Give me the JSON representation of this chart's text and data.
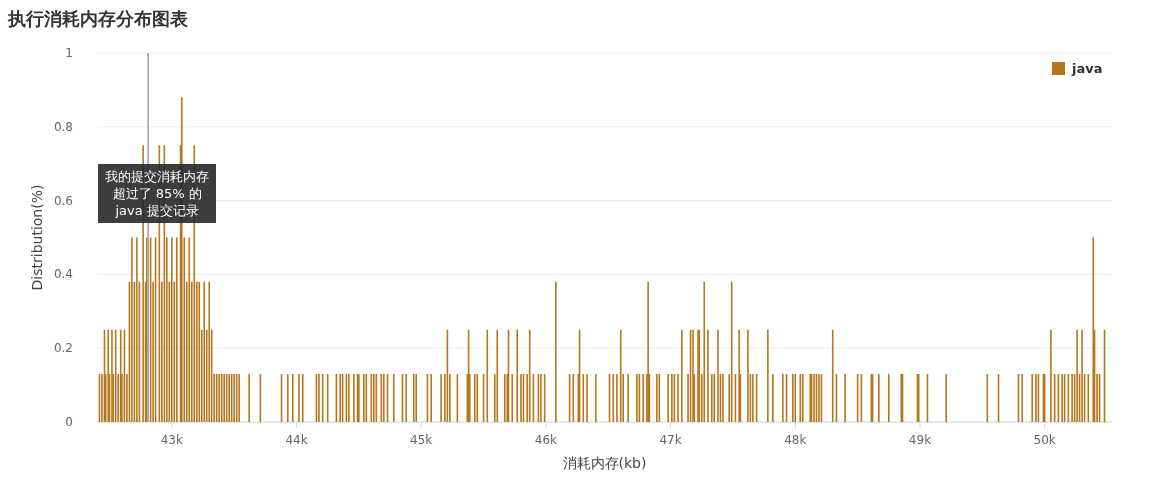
{
  "chart_data": {
    "type": "bar",
    "title": "执行消耗内存分布图表",
    "xlabel": "消耗内存(kb)",
    "ylabel": "Distribution(%)",
    "xlim": [
      42400,
      50540
    ],
    "ylim": [
      0,
      1
    ],
    "xticks": [
      {
        "value": 43000,
        "label": "43k"
      },
      {
        "value": 44000,
        "label": "44k"
      },
      {
        "value": 45000,
        "label": "45k"
      },
      {
        "value": 46000,
        "label": "46k"
      },
      {
        "value": 47000,
        "label": "47k"
      },
      {
        "value": 48000,
        "label": "48k"
      },
      {
        "value": 49000,
        "label": "49k"
      },
      {
        "value": 50000,
        "label": "50k"
      }
    ],
    "yticks": [
      0,
      0.2,
      0.4,
      0.6,
      0.8,
      1
    ],
    "grid": "y",
    "legend": "top right",
    "ref_lines": [
      {
        "axis": "x",
        "value": 42810,
        "label": "我的提交消耗内存超过了 85% 的 java 提交记录",
        "color": "#a0a0a0"
      }
    ],
    "x": [
      42420,
      42440,
      42460,
      42470,
      42490,
      42500,
      42520,
      42530,
      42550,
      42570,
      42590,
      42600,
      42620,
      42640,
      42660,
      42680,
      42700,
      42720,
      42740,
      42770,
      42790,
      42800,
      42830,
      42850,
      42870,
      42900,
      42920,
      42940,
      42960,
      42980,
      43000,
      43020,
      43040,
      43070,
      43080,
      43100,
      43120,
      43140,
      43160,
      43180,
      43200,
      43220,
      43240,
      43260,
      43280,
      43300,
      43320,
      43340,
      43360,
      43380,
      43400,
      43420,
      43440,
      43460,
      43480,
      43500,
      43520,
      43540,
      43620,
      43710,
      43880,
      43930,
      43970,
      44020,
      44050,
      44160,
      44180,
      44210,
      44250,
      44320,
      44350,
      44370,
      44400,
      44420,
      44460,
      44490,
      44500,
      44540,
      44560,
      44600,
      44620,
      44640,
      44680,
      44700,
      44730,
      44780,
      44850,
      44880,
      44940,
      44960,
      45050,
      45080,
      45160,
      45190,
      45210,
      45230,
      45290,
      45370,
      45380,
      45390,
      45430,
      45450,
      45500,
      45530,
      45590,
      45610,
      45670,
      45690,
      45700,
      45730,
      45770,
      45800,
      45820,
      45850,
      45870,
      45900,
      45940,
      45960,
      45990,
      46080,
      46190,
      46220,
      46260,
      46270,
      46300,
      46330,
      46400,
      46510,
      46540,
      46570,
      46600,
      46620,
      46660,
      46730,
      46750,
      46780,
      46810,
      46820,
      46830,
      46890,
      46910,
      46980,
      47010,
      47030,
      47060,
      47090,
      47140,
      47160,
      47180,
      47190,
      47220,
      47230,
      47250,
      47270,
      47300,
      47330,
      47350,
      47380,
      47400,
      47420,
      47470,
      47490,
      47520,
      47550,
      47560,
      47620,
      47640,
      47660,
      47690,
      47780,
      47820,
      47900,
      47930,
      47980,
      48000,
      48040,
      48060,
      48120,
      48130,
      48150,
      48170,
      48190,
      48210,
      48300,
      48330,
      48400,
      48500,
      48530,
      48610,
      48620,
      48670,
      48750,
      48850,
      48860,
      48980,
      48990,
      49060,
      49210,
      49540,
      49630,
      49790,
      49820,
      49900,
      49930,
      49950,
      49990,
      50000,
      50050,
      50080,
      50110,
      50140,
      50160,
      50190,
      50220,
      50240,
      50260,
      50280,
      50300,
      50320,
      50350,
      50390,
      50400,
      50420,
      50440,
      50480
    ],
    "series": [
      {
        "name": "java",
        "color": "#b5761c",
        "values": [
          0.13,
          0.13,
          0.25,
          0.13,
          0.25,
          0.13,
          0.25,
          0.13,
          0.25,
          0.13,
          0.25,
          0.13,
          0.25,
          0.13,
          0.38,
          0.5,
          0.38,
          0.5,
          0.38,
          0.75,
          0.38,
          0.5,
          0.5,
          0.38,
          0.5,
          0.75,
          0.38,
          0.75,
          0.5,
          0.38,
          0.5,
          0.38,
          0.5,
          0.75,
          0.88,
          0.5,
          0.38,
          0.5,
          0.38,
          0.75,
          0.38,
          0.38,
          0.25,
          0.38,
          0.25,
          0.38,
          0.25,
          0.13,
          0.13,
          0.13,
          0.13,
          0.13,
          0.13,
          0.13,
          0.13,
          0.13,
          0.13,
          0.13,
          0.13,
          0.13,
          0.13,
          0.13,
          0.13,
          0.13,
          0.13,
          0.13,
          0.13,
          0.13,
          0.13,
          0.13,
          0.13,
          0.13,
          0.13,
          0.13,
          0.13,
          0.13,
          0.13,
          0.13,
          0.13,
          0.13,
          0.13,
          0.13,
          0.13,
          0.13,
          0.13,
          0.13,
          0.13,
          0.13,
          0.13,
          0.13,
          0.13,
          0.13,
          0.13,
          0.13,
          0.25,
          0.13,
          0.13,
          0.13,
          0.25,
          0.13,
          0.13,
          0.13,
          0.13,
          0.25,
          0.13,
          0.25,
          0.13,
          0.13,
          0.25,
          0.13,
          0.25,
          0.13,
          0.13,
          0.13,
          0.25,
          0.13,
          0.13,
          0.13,
          0.13,
          0.38,
          0.13,
          0.13,
          0.13,
          0.25,
          0.13,
          0.13,
          0.13,
          0.13,
          0.13,
          0.13,
          0.25,
          0.13,
          0.13,
          0.13,
          0.13,
          0.13,
          0.13,
          0.38,
          0.13,
          0.13,
          0.13,
          0.13,
          0.13,
          0.13,
          0.13,
          0.25,
          0.13,
          0.25,
          0.25,
          0.13,
          0.25,
          0.25,
          0.13,
          0.38,
          0.25,
          0.13,
          0.13,
          0.25,
          0.13,
          0.13,
          0.13,
          0.38,
          0.13,
          0.25,
          0.13,
          0.25,
          0.13,
          0.13,
          0.13,
          0.25,
          0.13,
          0.13,
          0.13,
          0.13,
          0.13,
          0.13,
          0.13,
          0.13,
          0.13,
          0.13,
          0.13,
          0.13,
          0.13,
          0.25,
          0.13,
          0.13,
          0.13,
          0.13,
          0.13,
          0.13,
          0.13,
          0.13,
          0.13,
          0.13,
          0.13,
          0.13,
          0.13,
          0.13,
          0.13,
          0.13,
          0.13,
          0.13,
          0.13,
          0.13,
          0.13,
          0.13,
          0.13,
          0.25,
          0.13,
          0.13,
          0.13,
          0.13,
          0.13,
          0.13,
          0.13,
          0.25,
          0.13,
          0.25,
          0.13,
          0.13,
          0.5,
          0.25,
          0.13,
          0.13,
          0.25
        ]
      }
    ]
  }
}
